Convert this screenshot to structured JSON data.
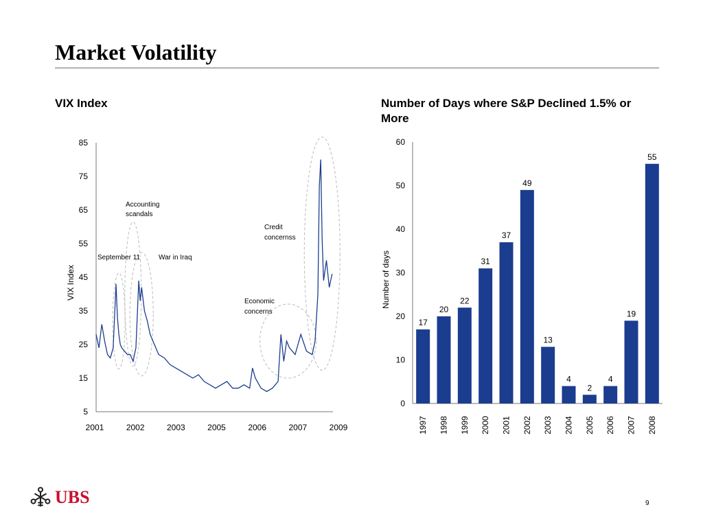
{
  "page": {
    "title": "Market Volatility",
    "page_number": "9",
    "logo_text": "UBS"
  },
  "chart_data": [
    {
      "type": "line",
      "title": "VIX Index",
      "ylabel": "VIX Index",
      "xlabel": "",
      "ylim": [
        5,
        85
      ],
      "yticks": [
        5,
        15,
        25,
        35,
        45,
        55,
        65,
        75,
        85
      ],
      "xtick_labels": [
        "2001",
        "2002",
        "2003",
        "2005",
        "2006",
        "2007",
        "2009"
      ],
      "grid": false,
      "series": [
        {
          "color": "#1b3d8f",
          "x": [
            2001.0,
            2001.1,
            2001.2,
            2001.3,
            2001.4,
            2001.5,
            2001.6,
            2001.7,
            2001.75,
            2001.8,
            2001.85,
            2001.9,
            2002.0,
            2002.1,
            2002.2,
            2002.3,
            2002.4,
            2002.5,
            2002.55,
            2002.6,
            2002.7,
            2002.8,
            2002.9,
            2003.0,
            2003.2,
            2003.4,
            2003.6,
            2003.8,
            2004.0,
            2004.2,
            2004.4,
            2004.6,
            2004.8,
            2005.0,
            2005.2,
            2005.4,
            2005.6,
            2005.8,
            2006.0,
            2006.2,
            2006.4,
            2006.5,
            2006.6,
            2006.8,
            2007.0,
            2007.2,
            2007.4,
            2007.5,
            2007.6,
            2007.7,
            2007.8,
            2008.0,
            2008.2,
            2008.4,
            2008.6,
            2008.7,
            2008.8,
            2008.85,
            2008.9,
            2008.95,
            2009.0,
            2009.1,
            2009.2,
            2009.3
          ],
          "values": [
            28,
            24,
            31,
            26,
            22,
            21,
            24,
            43,
            33,
            28,
            25,
            24,
            23,
            22,
            22,
            20,
            24,
            44,
            38,
            42,
            35,
            32,
            28,
            26,
            22,
            21,
            19,
            18,
            17,
            16,
            15,
            16,
            14,
            13,
            12,
            13,
            14,
            12,
            12,
            13,
            12,
            18,
            15,
            12,
            11,
            12,
            14,
            28,
            20,
            26,
            24,
            22,
            28,
            23,
            22,
            26,
            40,
            72,
            80,
            56,
            44,
            50,
            42,
            46
          ]
        }
      ],
      "annotations": [
        {
          "text": "September 11",
          "x": 2001.75,
          "y": 55
        },
        {
          "text": "War in Iraq",
          "x": 2002.5,
          "y": 55
        },
        {
          "text": "Accounting",
          "x": 2002.6,
          "y": 66
        },
        {
          "text": "scandals",
          "x": 2002.6,
          "y": 64
        },
        {
          "text": "Credit",
          "x": 2006.5,
          "y": 60
        },
        {
          "text": "concernss",
          "x": 2006.5,
          "y": 58
        },
        {
          "text": "Economic",
          "x": 2006.5,
          "y": 37
        },
        {
          "text": "concerns",
          "x": 2006.5,
          "y": 35
        }
      ]
    },
    {
      "type": "bar",
      "title": "Number of Days where S&P Declined 1.5% or More",
      "ylabel": "Number of days",
      "xlabel": "",
      "ylim": [
        0,
        60
      ],
      "yticks": [
        0,
        10,
        20,
        30,
        40,
        50,
        60
      ],
      "categories": [
        "1997",
        "1998",
        "1999",
        "2000",
        "2001",
        "2002",
        "2003",
        "2004",
        "2005",
        "2006",
        "2007",
        "2008"
      ],
      "values": [
        17,
        20,
        22,
        31,
        37,
        49,
        13,
        4,
        2,
        4,
        19,
        55
      ],
      "color": "#1b3d8f",
      "grid": false,
      "data_labels": true
    }
  ]
}
